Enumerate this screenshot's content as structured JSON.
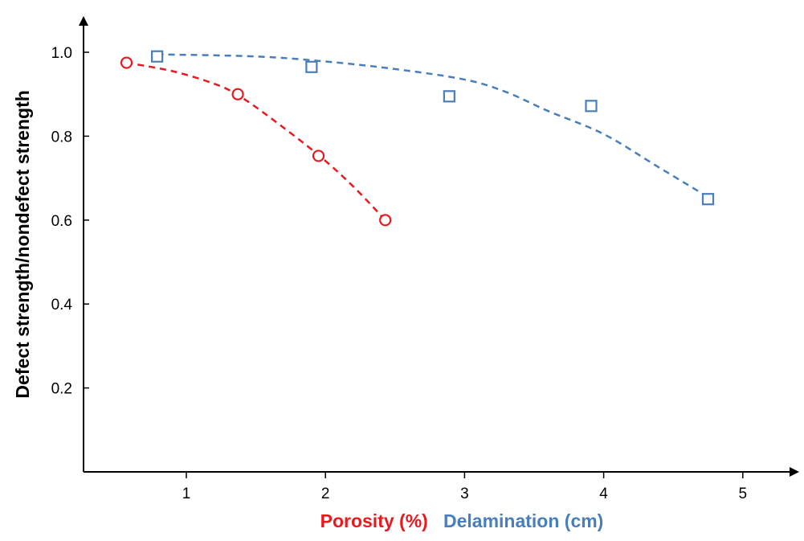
{
  "chart_data": {
    "type": "scatter",
    "title": "",
    "ylabel": "Defect strength/nondefect strength",
    "xlabel_parts": [
      {
        "text": "Porosity (%)",
        "color": "#e8191f"
      },
      {
        "text": "Delamination (cm)",
        "color": "#4a7ebb"
      }
    ],
    "xlim": [
      0.25,
      5.4
    ],
    "ylim": [
      0,
      1.1
    ],
    "x_ticks": [
      1,
      2,
      3,
      4,
      5
    ],
    "x_tick_labels": [
      "1",
      "2",
      "3",
      "4",
      "5"
    ],
    "y_ticks": [
      0.2,
      0.4,
      0.6,
      0.8,
      1.0
    ],
    "y_tick_labels": [
      "0.2",
      "0.4",
      "0.6",
      "0.8",
      "1.0"
    ],
    "grid": false,
    "legend": "none",
    "series": [
      {
        "name": "Porosity (%)",
        "color": "#e8191f",
        "marker": "circle",
        "points": [
          [
            0.57,
            0.975
          ],
          [
            1.37,
            0.9
          ],
          [
            1.95,
            0.753
          ],
          [
            2.43,
            0.6
          ]
        ],
        "trendline": [
          [
            0.57,
            0.975
          ],
          [
            0.9,
            0.955
          ],
          [
            1.2,
            0.925
          ],
          [
            1.37,
            0.898
          ],
          [
            1.6,
            0.845
          ],
          [
            1.95,
            0.755
          ],
          [
            2.2,
            0.68
          ],
          [
            2.43,
            0.6
          ]
        ]
      },
      {
        "name": "Delamination (cm)",
        "color": "#4a7ebb",
        "marker": "square",
        "points": [
          [
            0.79,
            0.99
          ],
          [
            1.9,
            0.965
          ],
          [
            2.89,
            0.895
          ],
          [
            3.91,
            0.872
          ],
          [
            4.75,
            0.65
          ]
        ],
        "trendline": [
          [
            0.79,
            0.995
          ],
          [
            1.5,
            0.99
          ],
          [
            2.0,
            0.978
          ],
          [
            2.5,
            0.96
          ],
          [
            3.0,
            0.935
          ],
          [
            3.3,
            0.905
          ],
          [
            3.6,
            0.86
          ],
          [
            4.0,
            0.805
          ],
          [
            4.4,
            0.725
          ],
          [
            4.75,
            0.655
          ]
        ]
      }
    ]
  }
}
